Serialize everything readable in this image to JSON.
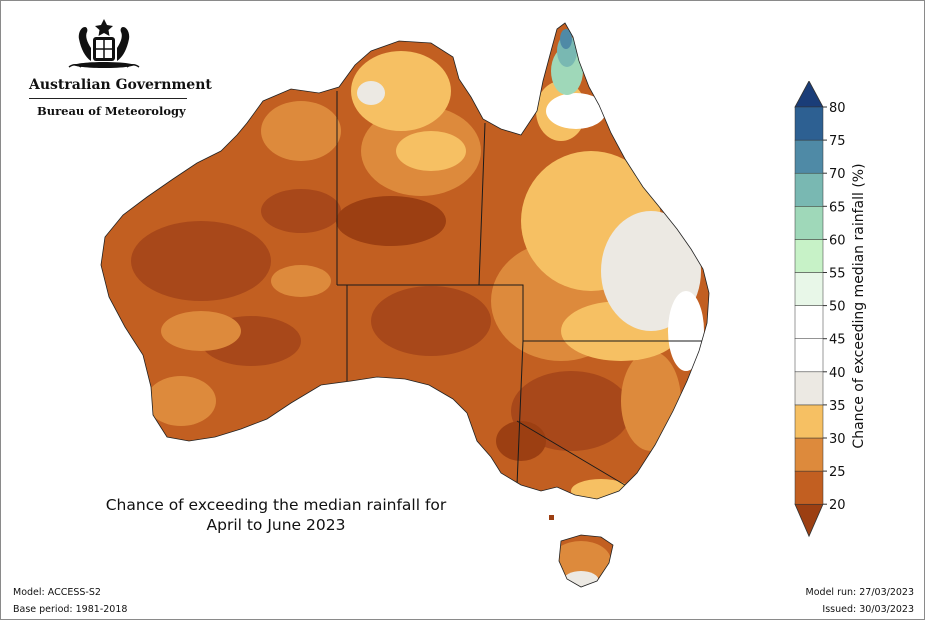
{
  "header": {
    "government": "Australian Government",
    "agency": "Bureau of Meteorology"
  },
  "map": {
    "title_line1": "Chance of exceeding the median rainfall for",
    "title_line2": "April to June 2023"
  },
  "legend": {
    "label": "Chance of exceeding median rainfall (%)",
    "ticks": [
      "20",
      "25",
      "30",
      "35",
      "40",
      "45",
      "50",
      "55",
      "60",
      "65",
      "70",
      "75",
      "80"
    ],
    "colors": [
      "#9c3f12",
      "#c25f21",
      "#dd8a3c",
      "#f6c063",
      "#ece9e3",
      "#ffffff",
      "#ffffff",
      "#e8f7e8",
      "#c7f2c7",
      "#9fd8b9",
      "#79b8b2",
      "#4f8aa6",
      "#2d6092",
      "#1a3d78"
    ]
  },
  "footer": {
    "model": "Model: ACCESS-S2",
    "base_period": "Base period: 1981-2018",
    "model_run": "Model run: 27/03/2023",
    "issued": "Issued: 30/03/2023"
  }
}
